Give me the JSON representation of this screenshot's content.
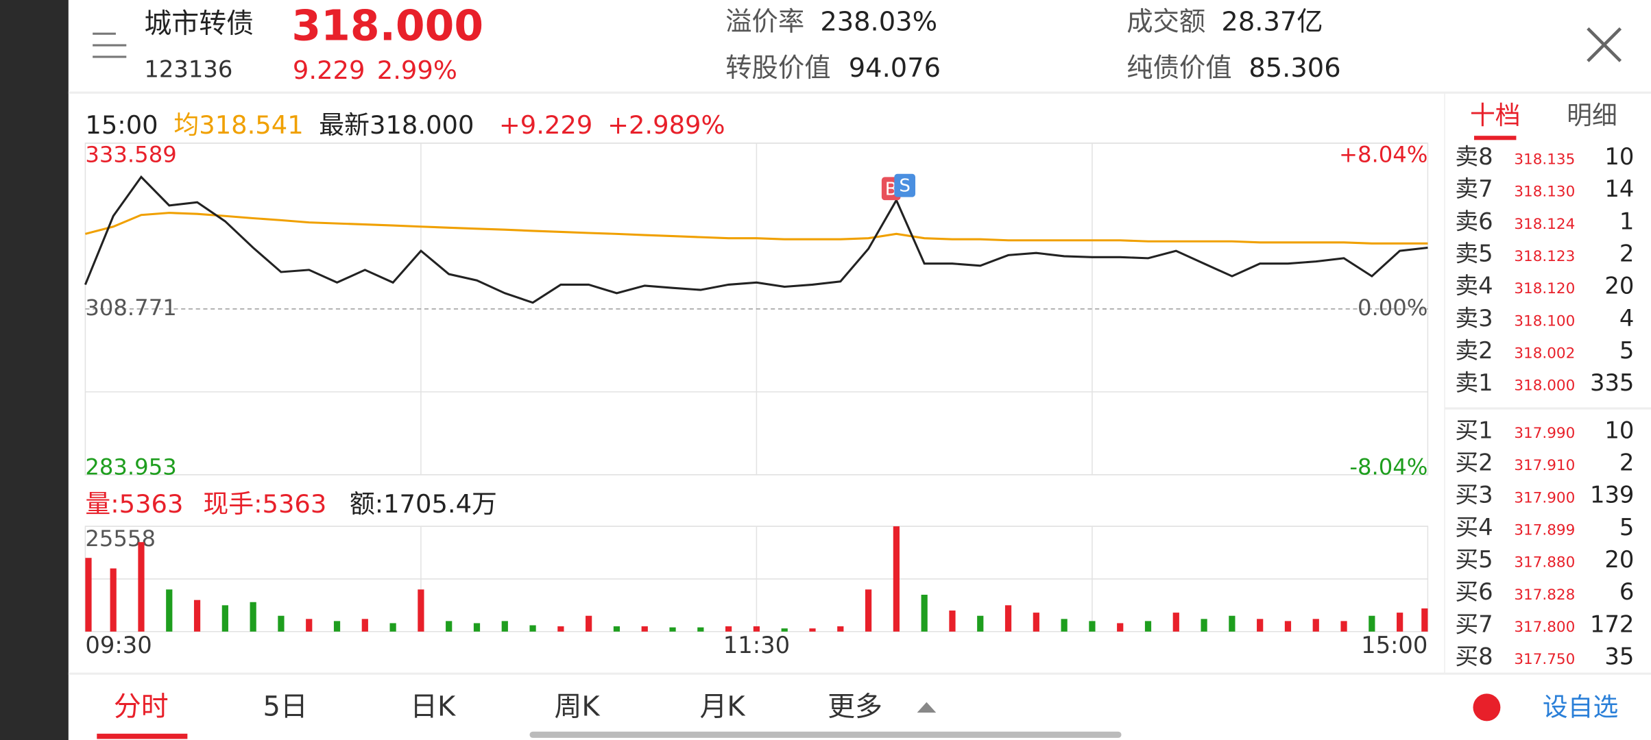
{
  "header": {
    "name": "城市转债",
    "code": "123136",
    "price": "318.000",
    "change": "9.229",
    "change_pct": "2.99%",
    "stats": [
      {
        "label": "溢价率",
        "value": "238.03%"
      },
      {
        "label": "转股价值",
        "value": "94.076"
      },
      {
        "label": "成交额",
        "value": "28.37亿"
      },
      {
        "label": "纯债价值",
        "value": "85.306"
      }
    ]
  },
  "info": {
    "time": "15:00",
    "average": "均318.541",
    "latest": "最新318.000",
    "change": "+9.229",
    "change_pct": "+2.989%"
  },
  "volume_info": {
    "volume": "量:5363",
    "current": "现手:5363",
    "amount": "额:1705.4万"
  },
  "markers": {
    "buy": "B",
    "sell": "S"
  },
  "chart": {
    "ylim": [
      283.953,
      333.589
    ],
    "yticks": [
      333.589,
      308.771,
      283.953
    ],
    "pct_labels": [
      "+8.04%",
      "0.00%",
      "-8.04%"
    ],
    "vol_ylim": [
      0,
      25558
    ],
    "vol_ticks": [
      25558
    ],
    "xticks": [
      "09:30",
      "11:30",
      "15:00"
    ],
    "price_color": "#222222",
    "average_color": "#f0a000",
    "up_color": "#e8202a",
    "down_color": "#1e9e1e",
    "price": [
      312.41,
      322.68,
      328.53,
      324.26,
      324.74,
      321.89,
      317.94,
      314.3,
      314.62,
      312.72,
      314.62,
      312.72,
      317.47,
      313.99,
      313.04,
      311.14,
      309.72,
      312.41,
      312.41,
      311.14,
      312.25,
      311.93,
      311.62,
      312.41,
      312.72,
      312.09,
      312.41,
      312.88,
      317.78,
      325.05,
      315.57,
      315.57,
      315.25,
      316.83,
      317.15,
      316.67,
      316.52,
      316.52,
      316.36,
      317.47,
      315.57,
      313.67,
      315.57,
      315.57,
      315.88,
      316.36,
      313.67,
      317.47,
      317.94
    ],
    "average": [
      320.0,
      321.1,
      322.84,
      323.16,
      323.0,
      322.68,
      322.36,
      322.05,
      321.73,
      321.57,
      321.42,
      321.26,
      321.1,
      320.94,
      320.78,
      320.63,
      320.47,
      320.31,
      320.15,
      320.0,
      319.84,
      319.68,
      319.52,
      319.36,
      319.36,
      319.2,
      319.2,
      319.2,
      319.36,
      320.0,
      319.36,
      319.2,
      319.2,
      319.05,
      319.05,
      319.05,
      319.05,
      319.05,
      318.89,
      318.89,
      318.89,
      318.89,
      318.73,
      318.73,
      318.73,
      318.73,
      318.57,
      318.57,
      318.57
    ],
    "volume": [
      17891,
      15335,
      21724,
      10223,
      7667,
      6390,
      7156,
      3834,
      3067,
      2556,
      3067,
      2045,
      10223,
      2556,
      2045,
      2556,
      1533,
      1278,
      3834,
      1278,
      1278,
      1022,
      1022,
      1278,
      1278,
      767,
      767,
      1278,
      10223,
      25558,
      8945,
      5112,
      3834,
      6390,
      4600,
      3067,
      2556,
      2045,
      2556,
      4600,
      3067,
      3834,
      3067,
      2556,
      3067,
      2556,
      3834,
      4600,
      5623
    ]
  },
  "tabs": {
    "detail": [
      "十档",
      "明细"
    ],
    "bottom": [
      "分时",
      "5日",
      "日K",
      "周K",
      "月K",
      "更多"
    ],
    "watch": "设自选"
  },
  "order_book": {
    "sell": [
      {
        "label": "卖8",
        "price": "318.135",
        "volume": "10"
      },
      {
        "label": "卖7",
        "price": "318.130",
        "volume": "14"
      },
      {
        "label": "卖6",
        "price": "318.124",
        "volume": "1"
      },
      {
        "label": "卖5",
        "price": "318.123",
        "volume": "2"
      },
      {
        "label": "卖4",
        "price": "318.120",
        "volume": "20"
      },
      {
        "label": "卖3",
        "price": "318.100",
        "volume": "4"
      },
      {
        "label": "卖2",
        "price": "318.002",
        "volume": "5"
      },
      {
        "label": "卖1",
        "price": "318.000",
        "volume": "335"
      }
    ],
    "buy": [
      {
        "label": "买1",
        "price": "317.990",
        "volume": "10"
      },
      {
        "label": "买2",
        "price": "317.910",
        "volume": "2"
      },
      {
        "label": "买3",
        "price": "317.900",
        "volume": "139"
      },
      {
        "label": "买4",
        "price": "317.899",
        "volume": "5"
      },
      {
        "label": "买5",
        "price": "317.880",
        "volume": "20"
      },
      {
        "label": "买6",
        "price": "317.828",
        "volume": "6"
      },
      {
        "label": "买7",
        "price": "317.800",
        "volume": "172"
      },
      {
        "label": "买8",
        "price": "317.750",
        "volume": "35"
      }
    ]
  }
}
